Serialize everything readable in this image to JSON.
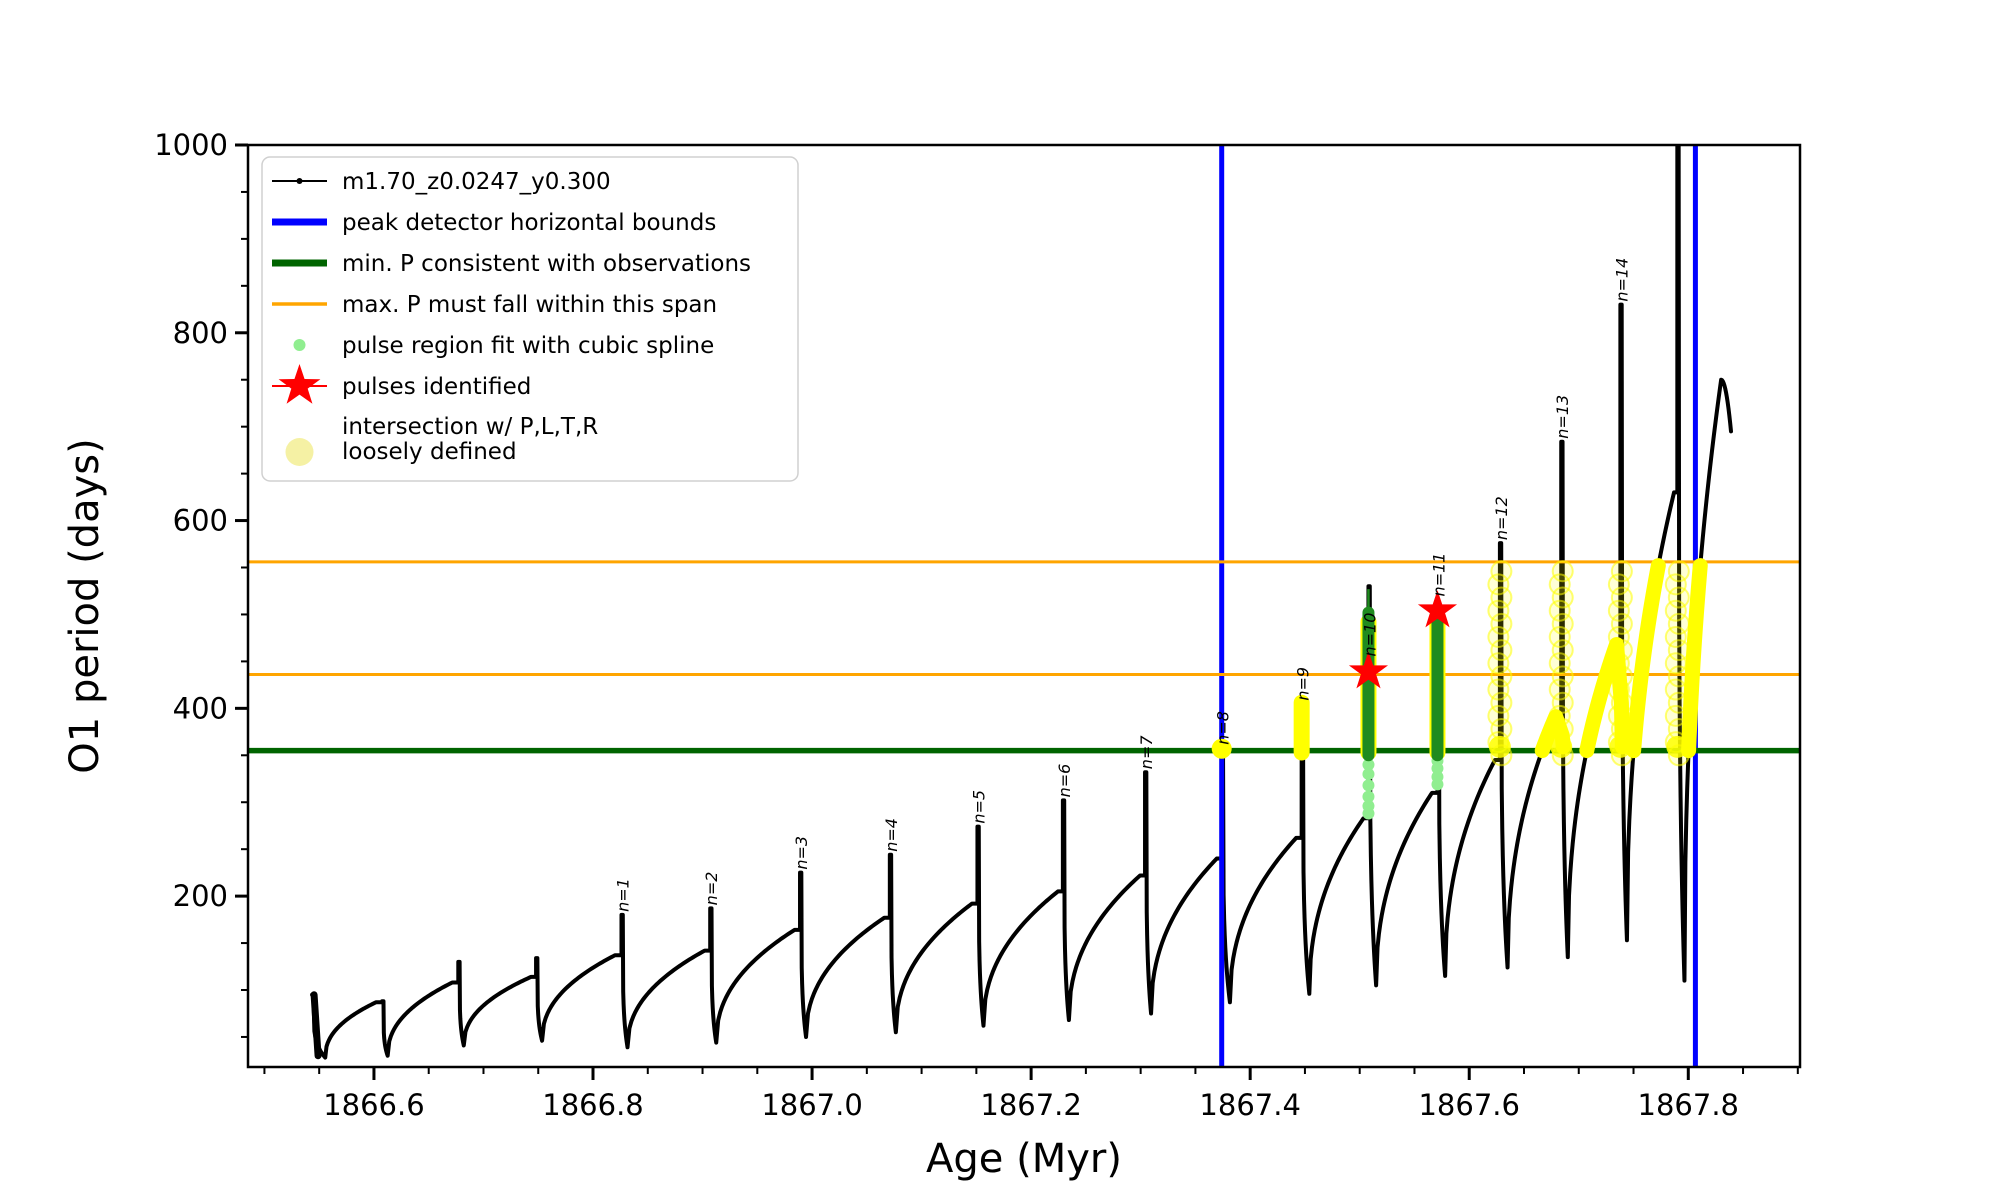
{
  "chart_data": {
    "type": "line",
    "title": "",
    "xlabel": "Age (Myr)",
    "ylabel": "O1 period (days)",
    "xlim": [
      1866.485,
      1867.902
    ],
    "ylim": [
      18,
      1000
    ],
    "grid": false,
    "x_ticks": {
      "values": [
        1866.6,
        1866.8,
        1867.0,
        1867.2,
        1867.4,
        1867.6,
        1867.8
      ],
      "labels": [
        "1866.6",
        "1866.8",
        "1867.0",
        "1867.2",
        "1867.4",
        "1867.6",
        "1867.8"
      ],
      "minor_step": 0.05
    },
    "y_ticks": {
      "values": [
        200,
        400,
        600,
        800,
        1000
      ],
      "labels": [
        "200",
        "400",
        "600",
        "800",
        "1000"
      ],
      "minor_step": 50
    },
    "series_name": "m1.70_z0.0247_y0.300",
    "peak_detector_bounds_x": [
      1867.374,
      1867.8065
    ],
    "min_P_line": 355,
    "max_P_span": [
      436,
      556
    ],
    "cycles": [
      {
        "tr": [
          1866.5555,
          28
        ],
        "pk": [
          1866.602,
          87
        ],
        "sp": [
          1866.6075,
          88
        ],
        "label": ""
      },
      {
        "tr": [
          1866.6125,
          30
        ],
        "pk": [
          1866.6715,
          108
        ],
        "sp": [
          1866.677,
          130
        ],
        "label": ""
      },
      {
        "tr": [
          1866.682,
          41
        ],
        "pk": [
          1866.7435,
          114
        ],
        "sp": [
          1866.748,
          134
        ],
        "label": ""
      },
      {
        "tr": [
          1866.7535,
          46
        ],
        "pk": [
          1866.82,
          137
        ],
        "sp": [
          1866.826,
          180
        ],
        "label": "n=1"
      },
      {
        "tr": [
          1866.8315,
          39
        ],
        "pk": [
          1866.902,
          142
        ],
        "sp": [
          1866.907,
          187
        ],
        "label": "n=2"
      },
      {
        "tr": [
          1866.9125,
          44
        ],
        "pk": [
          1866.984,
          164
        ],
        "sp": [
          1866.989,
          225
        ],
        "label": "n=3"
      },
      {
        "tr": [
          1866.9945,
          50
        ],
        "pk": [
          1867.066,
          177
        ],
        "sp": [
          1867.071,
          244
        ],
        "label": "n=4"
      },
      {
        "tr": [
          1867.0765,
          55
        ],
        "pk": [
          1867.146,
          192
        ],
        "sp": [
          1867.151,
          274
        ],
        "label": "n=5"
      },
      {
        "tr": [
          1867.1565,
          62
        ],
        "pk": [
          1867.2245,
          205
        ],
        "sp": [
          1867.229,
          302
        ],
        "label": "n=6"
      },
      {
        "tr": [
          1867.2345,
          68
        ],
        "pk": [
          1867.2995,
          222
        ],
        "sp": [
          1867.304,
          332
        ],
        "label": "n=7"
      },
      {
        "tr": [
          1867.3095,
          75
        ],
        "pk": [
          1867.3695,
          240
        ],
        "sp": [
          1867.374,
          358
        ],
        "label": "n=8"
      },
      {
        "tr": [
          1867.3815,
          87
        ],
        "pk": [
          1867.442,
          262
        ],
        "sp": [
          1867.447,
          405
        ],
        "label": "n=9"
      },
      {
        "tr": [
          1867.454,
          96
        ],
        "pk": [
          1867.5035,
          283
        ],
        "sp": [
          1867.508,
          530
        ],
        "label": "n=10",
        "label_anchor_P": 452
      },
      {
        "tr": [
          1867.515,
          105
        ],
        "pk": [
          1867.566,
          310
        ],
        "sp": [
          1867.571,
          500
        ],
        "label": "n=11",
        "label_anchor_P": 516
      },
      {
        "tr": [
          1867.578,
          115
        ],
        "pk": [
          1867.6235,
          345
        ],
        "sp": [
          1867.628,
          576
        ],
        "label": "n=12"
      },
      {
        "tr": [
          1867.635,
          124
        ],
        "pk": [
          1867.679,
          391
        ],
        "sp": [
          1867.684,
          684
        ],
        "label": "n=13"
      },
      {
        "tr": [
          1867.69,
          135
        ],
        "pk": [
          1867.7345,
          468
        ],
        "sp": [
          1867.738,
          830
        ],
        "label": "n=14"
      },
      {
        "tr": [
          1867.744,
          153
        ],
        "pk": [
          1867.787,
          630
        ],
        "sp": [
          1867.79,
          1020
        ],
        "label": ""
      },
      {
        "tr": [
          1867.7965,
          110
        ],
        "pk": [
          1867.83,
          750
        ],
        "hook_end": [
          1867.839,
          695
        ],
        "label": ""
      }
    ],
    "curve_start": [
      1866.5435,
      95
    ],
    "overlays": {
      "yellow_dot": {
        "t": 1867.374,
        "P": 357
      },
      "yellow_thick_spans": [
        {
          "t": 1867.447,
          "from": 353,
          "to": 406
        },
        {
          "t": 1867.508,
          "from": 353,
          "to": 492
        },
        {
          "t": 1867.571,
          "from": 353,
          "to": 490
        }
      ],
      "yellow_ring_spans": [
        {
          "t": 1867.628,
          "from": 350,
          "to": 558
        },
        {
          "t": 1867.684,
          "from": 350,
          "to": 558
        },
        {
          "t": 1867.738,
          "from": 350,
          "to": 558
        },
        {
          "t": 1867.79,
          "from": 350,
          "to": 558
        }
      ],
      "yellow_rise_bands": [
        {
          "cycle": 15,
          "from": 355,
          "to": 391,
          "arc": true
        },
        {
          "cycle": 16,
          "from": 355,
          "to": 468,
          "arc": true
        },
        {
          "cycle": 17,
          "from": 355,
          "to": 552,
          "arc": false
        },
        {
          "cycle": 18,
          "from": 355,
          "to": 552,
          "arc": false
        }
      ],
      "green_bars": [
        {
          "t": 1867.508,
          "from": 350,
          "to": 502,
          "thin_to": 527
        },
        {
          "t": 1867.571,
          "from": 350,
          "to": 497
        }
      ],
      "lightgreen_dots": [
        {
          "t": 1867.508,
          "P": [
            340,
            330,
            318,
            306,
            296,
            288
          ]
        },
        {
          "t": 1867.571,
          "P": [
            344,
            336,
            327,
            319
          ]
        }
      ],
      "stars": [
        {
          "t": 1867.508,
          "P": 439
        },
        {
          "t": 1867.571,
          "P": 504
        }
      ]
    },
    "colors": {
      "curve": "#000000",
      "blue": "#0000ff",
      "dark_green": "#006400",
      "bar_green": "#1f8b1f",
      "orange": "#ffa500",
      "light_green": "#90ee90",
      "yellow": "#ffff00",
      "pale_yellow": "#f5f1a4",
      "red": "#ff0000"
    }
  },
  "legend": {
    "entries": [
      {
        "marker": "line-dot",
        "color": "#000000",
        "label": "m1.70_z0.0247_y0.300"
      },
      {
        "marker": "thick-line",
        "color": "#0000ff",
        "label": "peak detector horizontal bounds"
      },
      {
        "marker": "thick-line",
        "color": "#006400",
        "label": "min. P consistent with observations"
      },
      {
        "marker": "line",
        "color": "#ffa500",
        "label": "max. P must fall within this span"
      },
      {
        "marker": "dot-small",
        "color": "#90ee90",
        "label": "pulse region fit with cubic spline"
      },
      {
        "marker": "star",
        "color": "#ff0000",
        "label": "pulses identified"
      },
      {
        "marker": "dot-large",
        "color": "#f5f1a4",
        "label": "intersection w/ P,L,T,R\nloosely defined"
      }
    ]
  }
}
